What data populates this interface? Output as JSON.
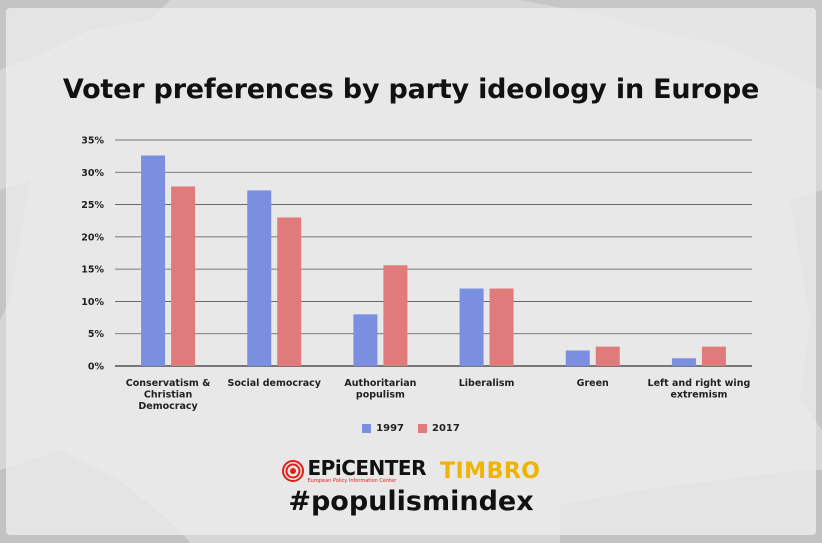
{
  "title": "Voter preferences by party ideology in Europe",
  "chart_data": {
    "type": "bar",
    "categories": [
      "Conservatism & Christian Democracy",
      "Social democracy",
      "Authoritarian populism",
      "Liberalism",
      "Green",
      "Left and right wing extremism"
    ],
    "category_label_lines": [
      [
        "Conservatism &",
        "Christian",
        "Democracy"
      ],
      [
        "Social democracy"
      ],
      [
        "Authoritarian",
        "populism"
      ],
      [
        "Liberalism"
      ],
      [
        "Green"
      ],
      [
        "Left and right wing",
        "extremism"
      ]
    ],
    "series": [
      {
        "name": "1997",
        "values": [
          32.6,
          27.2,
          8.0,
          12.0,
          2.4,
          1.2
        ],
        "color": "#7b8fe0"
      },
      {
        "name": "2017",
        "values": [
          27.8,
          23.0,
          15.6,
          12.0,
          3.0,
          3.0
        ],
        "color": "#e07b7b"
      }
    ],
    "ylim": [
      0,
      35
    ],
    "y_ticks": [
      "0%",
      "5%",
      "10%",
      "15%",
      "20%",
      "25%",
      "30%",
      "35%"
    ],
    "y_tick_values": [
      0,
      5,
      10,
      15,
      20,
      25,
      30,
      35
    ],
    "grid": true,
    "legend_position": "bottom"
  },
  "footer": {
    "epicenter": "EPiCENTER",
    "epicenter_sub": "European Policy Information Center",
    "timbro": "TIMBRO",
    "hashtag": "#populismindex"
  }
}
